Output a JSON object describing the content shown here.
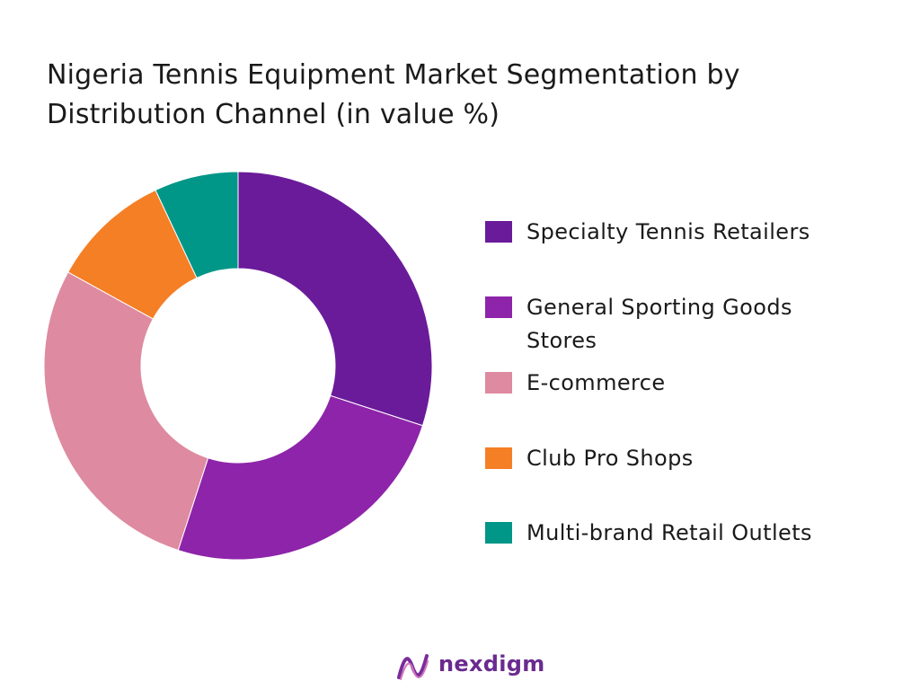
{
  "chart_data": {
    "type": "pie",
    "subtype": "donut",
    "title": "Nigeria Tennis Equipment Market  Segmentation by Distribution Channel (in value %)",
    "categories": [
      "Specialty Tennis Retailers",
      "General Sporting Goods Stores",
      "E-commerce",
      "Club Pro Shops",
      "Multi-brand Retail Outlets"
    ],
    "values": [
      30,
      25,
      28,
      10,
      7
    ],
    "colors": [
      "#6a1b9a",
      "#8e24aa",
      "#de8aa0",
      "#f57f25",
      "#009688"
    ],
    "legend_placement": "right",
    "start_angle_deg": 0,
    "direction": "clockwise"
  },
  "legend": {
    "items": [
      {
        "label": "Specialty Tennis Retailers",
        "color": "#6a1b9a"
      },
      {
        "label": "General Sporting Goods Stores",
        "color": "#8e24aa"
      },
      {
        "label": "E-commerce",
        "color": "#de8aa0"
      },
      {
        "label": "Club Pro Shops",
        "color": "#f57f25"
      },
      {
        "label": "Multi-brand Retail Outlets",
        "color": "#009688"
      }
    ]
  },
  "brand": {
    "name": "nexdigm",
    "color": "#6a2b8f"
  }
}
